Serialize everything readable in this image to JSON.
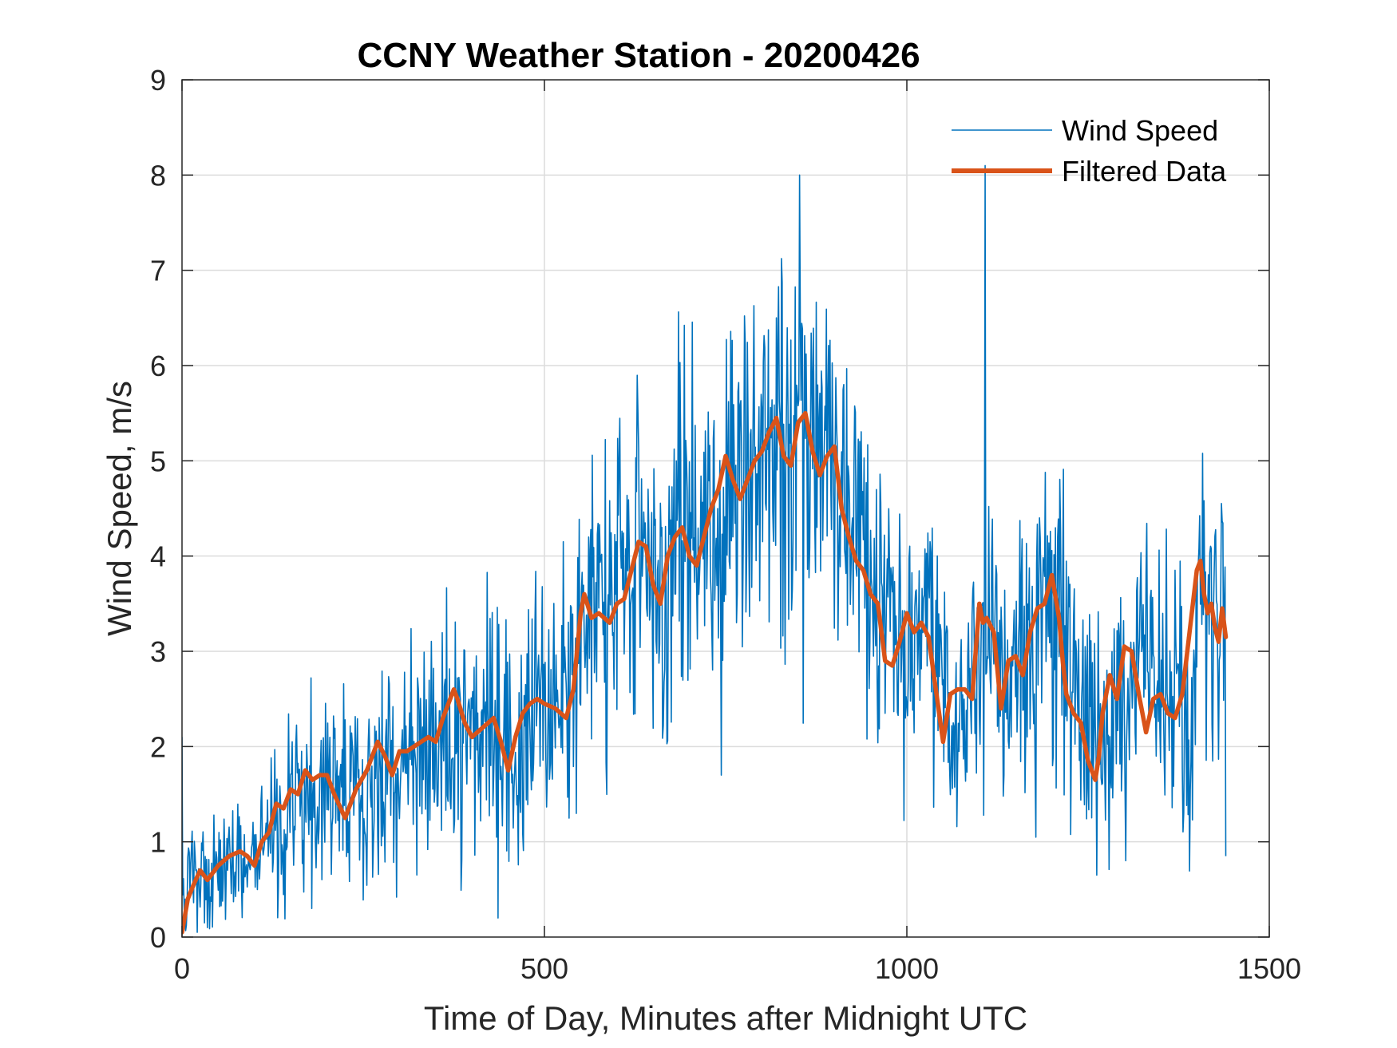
{
  "chart_data": {
    "type": "line",
    "title": "CCNY Weather Station - 20200426",
    "xlabel": "Time of Day, Minutes after Midnight UTC",
    "ylabel": "Wind Speed, m/s",
    "xlim": [
      0,
      1500
    ],
    "ylim": [
      0,
      9
    ],
    "xticks": [
      0,
      500,
      1000,
      1500
    ],
    "yticks": [
      0,
      1,
      2,
      3,
      4,
      5,
      6,
      7,
      8,
      9
    ],
    "grid": true,
    "legend_position": "top-right",
    "series": [
      {
        "name": "Wind Speed",
        "color": "#0072BD",
        "style": "thin",
        "x_range": [
          0,
          1440
        ],
        "sample_step": 1,
        "envelope_knots": {
          "x": [
            0,
            50,
            100,
            150,
            200,
            250,
            300,
            350,
            400,
            450,
            500,
            540,
            560,
            600,
            640,
            680,
            720,
            760,
            800,
            830,
            860,
            880,
            900,
            920,
            940,
            960,
            980,
            1000,
            1020,
            1040,
            1060,
            1080,
            1100,
            1110,
            1130,
            1160,
            1200,
            1215,
            1230,
            1250,
            1270,
            1300,
            1330,
            1360,
            1390,
            1410,
            1425,
            1440
          ],
          "mean": [
            0.5,
            0.7,
            0.85,
            1.3,
            1.6,
            1.4,
            1.9,
            2.0,
            2.3,
            2.0,
            2.5,
            2.5,
            3.4,
            3.5,
            4.0,
            3.9,
            4.2,
            4.8,
            4.9,
            5.0,
            5.2,
            5.0,
            5.0,
            4.5,
            4.0,
            3.6,
            3.2,
            2.8,
            3.2,
            3.0,
            2.4,
            2.5,
            2.6,
            3.3,
            2.8,
            2.9,
            3.4,
            3.6,
            3.0,
            2.2,
            1.7,
            2.6,
            2.8,
            2.4,
            2.5,
            3.6,
            3.4,
            3.2
          ],
          "spread": [
            0.5,
            0.55,
            0.6,
            0.8,
            0.9,
            0.9,
            1.0,
            1.1,
            1.2,
            1.1,
            1.2,
            1.3,
            1.5,
            1.5,
            1.6,
            1.7,
            1.8,
            1.8,
            1.8,
            1.9,
            1.9,
            1.8,
            1.7,
            1.6,
            1.5,
            1.3,
            1.2,
            1.1,
            1.1,
            1.1,
            1.2,
            1.2,
            1.3,
            1.4,
            1.3,
            1.3,
            1.4,
            1.5,
            1.4,
            1.2,
            1.1,
            1.3,
            1.3,
            1.2,
            1.3,
            1.5,
            1.5,
            1.4
          ]
        },
        "peaks": [
          {
            "x": 0,
            "y": 2.1
          },
          {
            "x": 436,
            "y": 0.2
          },
          {
            "x": 744,
            "y": 1.7
          },
          {
            "x": 852,
            "y": 8.0
          },
          {
            "x": 1108,
            "y": 8.1
          },
          {
            "x": 1262,
            "y": 0.65
          },
          {
            "x": 1440,
            "y": 0.85
          }
        ]
      },
      {
        "name": "Filtered Data",
        "color": "#D95319",
        "style": "thick",
        "x": [
          0,
          8,
          16,
          25,
          35,
          50,
          65,
          80,
          90,
          100,
          110,
          120,
          130,
          140,
          150,
          160,
          170,
          180,
          190,
          200,
          210,
          225,
          240,
          255,
          270,
          280,
          290,
          300,
          310,
          320,
          330,
          340,
          350,
          360,
          375,
          380,
          390,
          400,
          415,
          430,
          440,
          450,
          460,
          470,
          480,
          490,
          500,
          515,
          530,
          540,
          550,
          555,
          565,
          575,
          590,
          600,
          610,
          620,
          630,
          640,
          650,
          660,
          670,
          680,
          690,
          700,
          710,
          720,
          730,
          740,
          750,
          760,
          765,
          770,
          780,
          790,
          800,
          810,
          820,
          830,
          840,
          850,
          860,
          870,
          880,
          890,
          900,
          910,
          915,
          920,
          930,
          940,
          950,
          960,
          970,
          980,
          990,
          1000,
          1010,
          1020,
          1030,
          1040,
          1050,
          1060,
          1070,
          1080,
          1090,
          1100,
          1105,
          1110,
          1120,
          1130,
          1140,
          1150,
          1160,
          1170,
          1180,
          1190,
          1200,
          1210,
          1215,
          1220,
          1230,
          1240,
          1250,
          1260,
          1265,
          1270,
          1280,
          1290,
          1300,
          1310,
          1320,
          1330,
          1340,
          1350,
          1360,
          1370,
          1380,
          1390,
          1400,
          1405,
          1410,
          1415,
          1420,
          1425,
          1430,
          1435,
          1440
        ],
        "y": [
          0.05,
          0.4,
          0.55,
          0.7,
          0.6,
          0.75,
          0.85,
          0.9,
          0.85,
          0.75,
          1.0,
          1.1,
          1.4,
          1.35,
          1.55,
          1.5,
          1.75,
          1.65,
          1.7,
          1.7,
          1.5,
          1.25,
          1.55,
          1.75,
          2.05,
          1.9,
          1.7,
          1.95,
          1.95,
          2.0,
          2.05,
          2.1,
          2.05,
          2.3,
          2.6,
          2.5,
          2.25,
          2.1,
          2.2,
          2.3,
          2.05,
          1.75,
          2.1,
          2.35,
          2.45,
          2.5,
          2.45,
          2.4,
          2.3,
          2.6,
          3.4,
          3.6,
          3.35,
          3.4,
          3.3,
          3.5,
          3.55,
          3.85,
          4.15,
          4.1,
          3.7,
          3.5,
          4.0,
          4.2,
          4.3,
          4.0,
          3.9,
          4.2,
          4.5,
          4.7,
          5.05,
          4.8,
          4.7,
          4.6,
          4.8,
          5.0,
          5.1,
          5.3,
          5.45,
          5.05,
          4.95,
          5.4,
          5.5,
          5.1,
          4.85,
          5.05,
          5.15,
          4.5,
          4.35,
          4.2,
          3.95,
          3.85,
          3.6,
          3.5,
          2.9,
          2.85,
          3.1,
          3.4,
          3.2,
          3.3,
          3.15,
          2.6,
          2.05,
          2.55,
          2.6,
          2.6,
          2.5,
          3.5,
          3.3,
          3.35,
          3.2,
          2.4,
          2.9,
          2.95,
          2.75,
          3.2,
          3.45,
          3.5,
          3.8,
          3.35,
          2.9,
          2.55,
          2.35,
          2.25,
          1.85,
          1.65,
          1.9,
          2.35,
          2.75,
          2.5,
          3.05,
          3.0,
          2.55,
          2.15,
          2.5,
          2.55,
          2.35,
          2.3,
          2.55,
          3.2,
          3.85,
          3.95,
          3.6,
          3.4,
          3.5,
          3.25,
          3.1,
          3.45,
          3.15
        ]
      }
    ]
  }
}
